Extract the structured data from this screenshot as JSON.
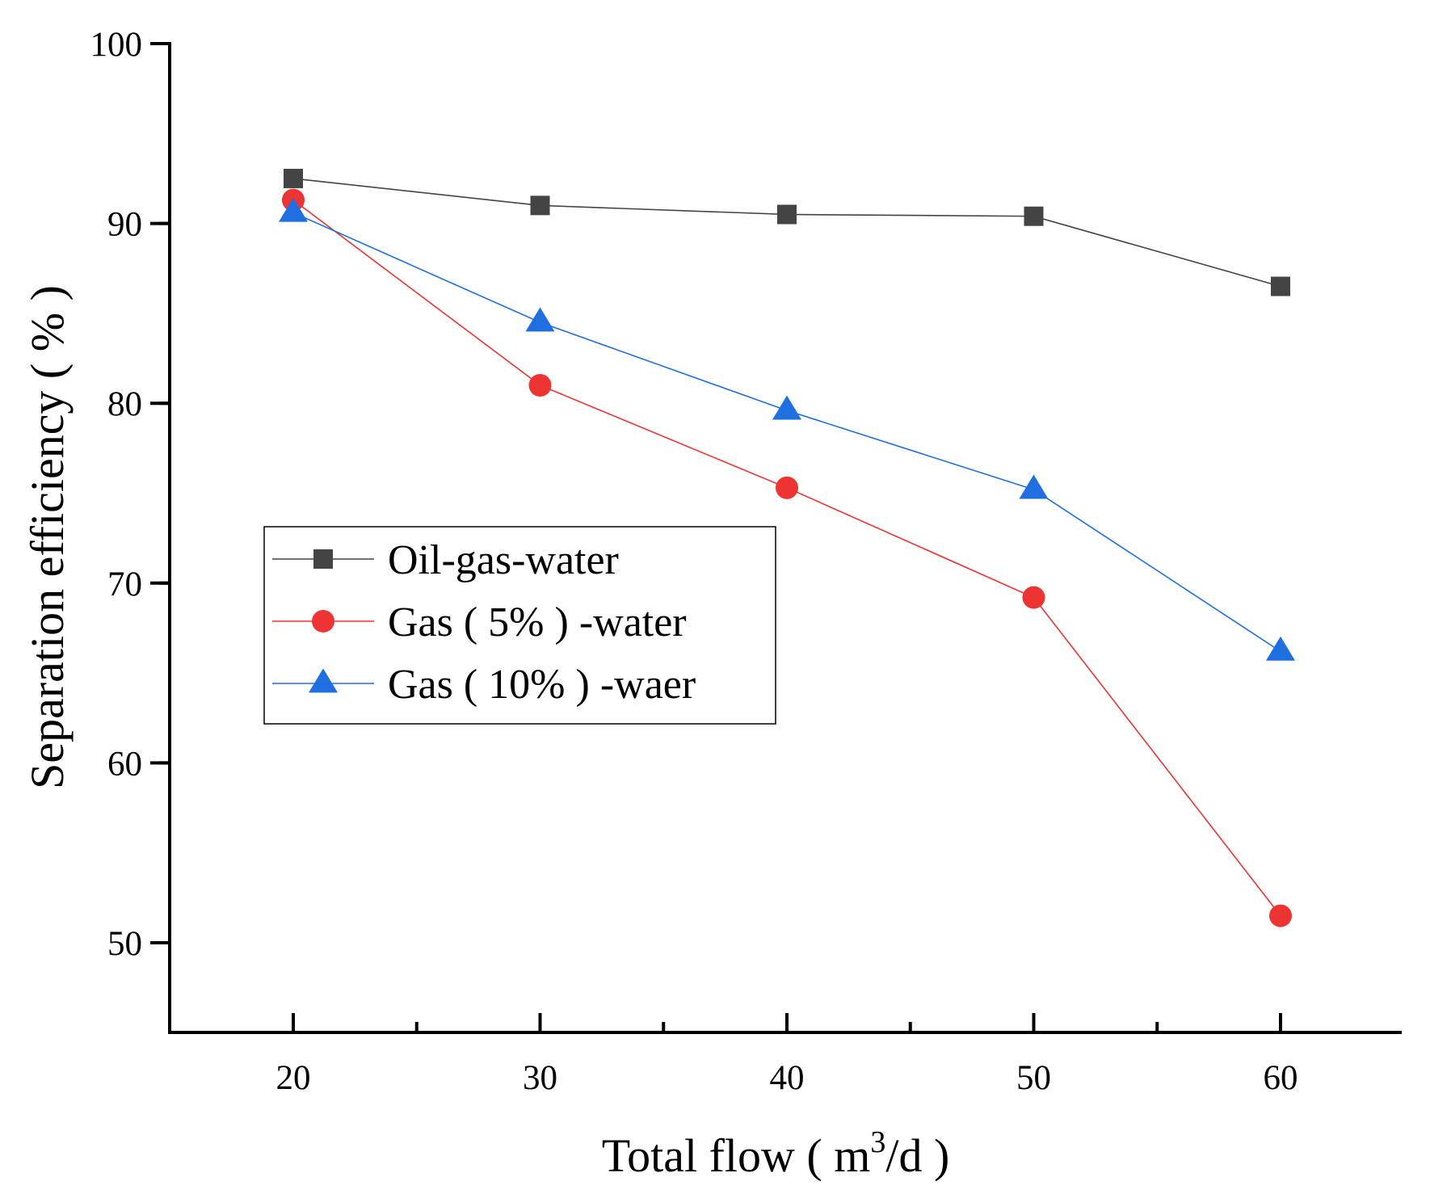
{
  "chart_data": {
    "type": "line",
    "title": "",
    "xlabel": "Total flow ( m",
    "xlabel_sup": "3",
    "xlabel_tail": "/d )",
    "ylabel": "Separation efficiency ( % )",
    "xlim": [
      15,
      65
    ],
    "ylim": [
      45,
      100
    ],
    "xticks": [
      20,
      30,
      40,
      50,
      60
    ],
    "yticks": [
      50,
      60,
      70,
      80,
      90,
      100
    ],
    "x": [
      20,
      30,
      40,
      50,
      60
    ],
    "legend_position": "center-left",
    "series": [
      {
        "name": "Oil-gas-water",
        "marker": "square",
        "color": "#444444",
        "values": [
          92.5,
          91.0,
          90.5,
          90.4,
          86.5
        ]
      },
      {
        "name": "Gas ( 5% ) -water",
        "marker": "circle",
        "color": "#ee3333",
        "values": [
          91.3,
          81.0,
          75.3,
          69.2,
          51.5
        ]
      },
      {
        "name": "Gas ( 10% ) -waer",
        "marker": "triangle",
        "color": "#1f6fe0",
        "values": [
          90.6,
          84.5,
          79.6,
          75.2,
          66.2
        ]
      }
    ]
  }
}
